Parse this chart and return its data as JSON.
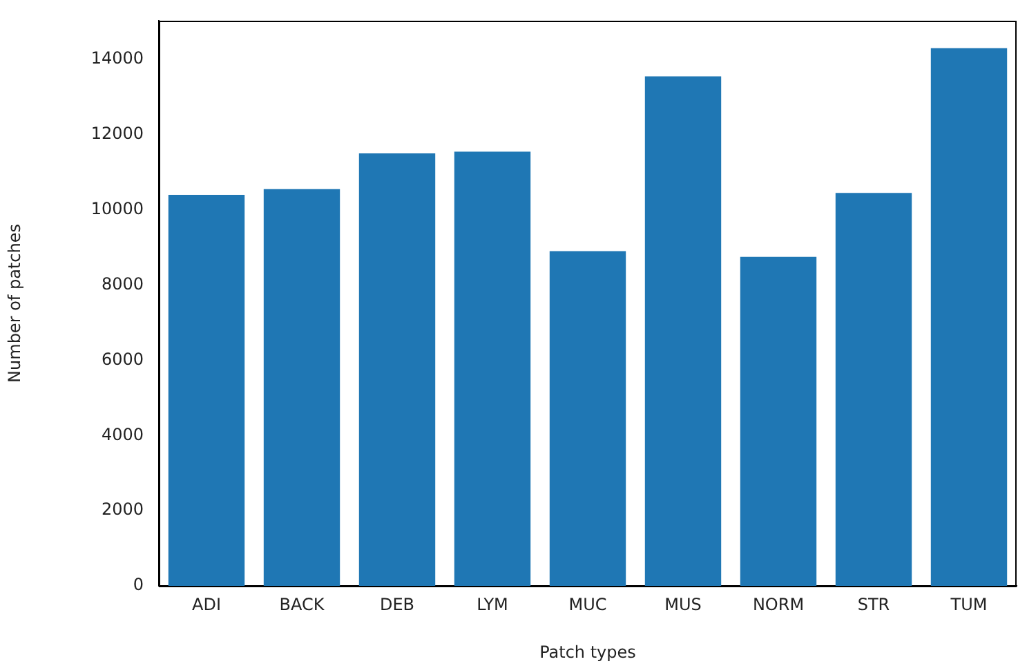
{
  "chart_data": {
    "type": "bar",
    "xlabel": "Patch types",
    "ylabel": "Number of patches",
    "categories": [
      "ADI",
      "BACK",
      "DEB",
      "LYM",
      "MUC",
      "MUS",
      "NORM",
      "STR",
      "TUM"
    ],
    "values": [
      10400,
      10550,
      11500,
      11550,
      8900,
      13550,
      8750,
      10450,
      14300
    ],
    "color": "#1f77b4",
    "ylim": [
      0,
      15030
    ],
    "yticks": [
      0,
      2000,
      4000,
      6000,
      8000,
      10000,
      12000,
      14000
    ],
    "grid": false,
    "legend": false
  }
}
